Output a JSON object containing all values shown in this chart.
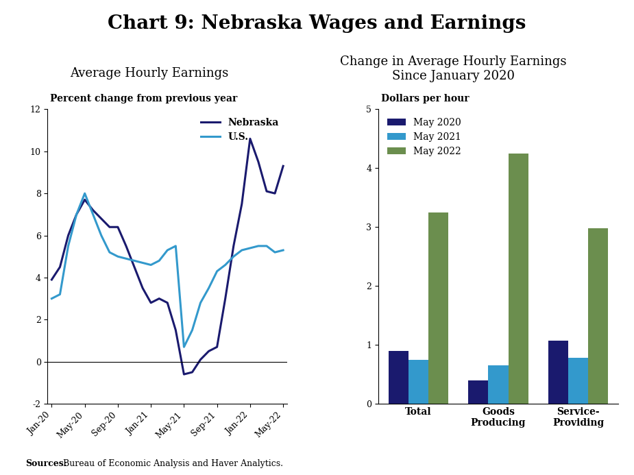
{
  "title": "Chart 9: Nebraska Wages and Earnings",
  "title_fontsize": 20,
  "left_panel_title": "Average Hourly Earnings",
  "right_panel_title": "Change in Average Hourly Earnings\nSince January 2020",
  "panel_title_fontsize": 13,
  "left_ylabel": "Percent change from previous year",
  "right_ylabel": "Dollars per hour",
  "ylabel_fontsize": 10,
  "source_text_bold": "Sources:",
  "source_text_rest": " Bureau of Economic Analysis and Haver Analytics.",
  "line_xlabels": [
    "Jan-20",
    "May-20",
    "Sep-20",
    "Jan-21",
    "May-21",
    "Sep-21",
    "Jan-22",
    "May-22"
  ],
  "nebraska_color": "#1a1a6e",
  "us_color": "#3399cc",
  "nebraska_label": "Nebraska",
  "us_label": "U.S.",
  "neb_x": [
    0,
    1,
    2,
    3,
    4,
    5,
    6,
    7,
    8,
    9,
    10,
    11,
    12,
    13,
    14,
    15,
    16,
    17,
    18,
    19,
    20,
    21,
    22,
    23,
    24,
    25,
    26,
    27,
    28
  ],
  "neb_y": [
    3.9,
    4.5,
    6.0,
    7.0,
    7.7,
    7.2,
    6.8,
    6.4,
    6.4,
    5.5,
    4.5,
    3.5,
    2.8,
    3.0,
    2.8,
    1.5,
    -0.6,
    -0.5,
    0.1,
    0.5,
    0.7,
    3.0,
    5.5,
    7.5,
    10.6,
    9.5,
    8.1,
    8.0,
    9.3
  ],
  "us_y": [
    3.0,
    3.2,
    5.5,
    7.0,
    8.0,
    7.0,
    6.0,
    5.2,
    5.0,
    4.9,
    4.8,
    4.7,
    4.6,
    4.8,
    5.3,
    5.5,
    0.7,
    1.5,
    2.8,
    3.5,
    4.3,
    4.6,
    5.0,
    5.3,
    5.4,
    5.5,
    5.5,
    5.2,
    5.3
  ],
  "line_ylim": [
    -2,
    12
  ],
  "line_yticks": [
    -2,
    0,
    2,
    4,
    6,
    8,
    10,
    12
  ],
  "key_x": [
    0,
    4,
    8,
    12,
    16,
    20,
    24,
    28
  ],
  "bar_categories": [
    "Total",
    "Goods\nProducing",
    "Service-\nProviding"
  ],
  "bar_may2020": [
    0.9,
    0.4,
    1.07
  ],
  "bar_may2021": [
    0.75,
    0.65,
    0.78
  ],
  "bar_may2022": [
    3.25,
    4.25,
    2.98
  ],
  "bar_color_2020": "#1a1a6e",
  "bar_color_2021": "#3399cc",
  "bar_color_2022": "#6b8e4e",
  "bar_ylim": [
    0,
    5
  ],
  "bar_yticks": [
    0,
    1,
    2,
    3,
    4,
    5
  ],
  "bar_legend_labels": [
    "May 2020",
    "May 2021",
    "May 2022"
  ],
  "legend_fontsize": 10,
  "tick_fontsize": 9,
  "linewidth": 2.2
}
